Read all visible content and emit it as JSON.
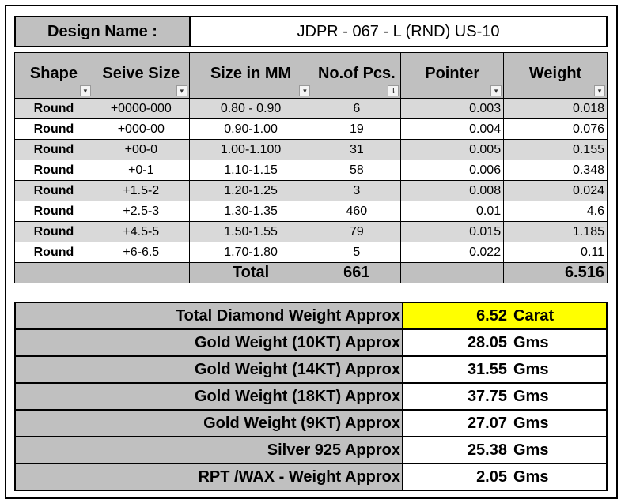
{
  "design": {
    "label": "Design Name :",
    "value": "JDPR - 067 - L (RND) US-10"
  },
  "table": {
    "headers": [
      "Shape",
      "Seive Size",
      "Size in MM",
      "No.of Pcs.",
      "Pointer",
      "Weight"
    ],
    "filter_icons": [
      "dropdown-arrow",
      "dropdown-arrow",
      "dropdown-arrow",
      "sort-filter-icon",
      "dropdown-arrow",
      "dropdown-arrow"
    ],
    "rows": [
      {
        "shape": "Round",
        "seive": "+0000-000",
        "mm": "0.80 - 0.90",
        "pcs": "6",
        "pointer": "0.003",
        "weight": "0.018"
      },
      {
        "shape": "Round",
        "seive": "+000-00",
        "mm": "0.90-1.00",
        "pcs": "19",
        "pointer": "0.004",
        "weight": "0.076"
      },
      {
        "shape": "Round",
        "seive": "+00-0",
        "mm": "1.00-1.100",
        "pcs": "31",
        "pointer": "0.005",
        "weight": "0.155"
      },
      {
        "shape": "Round",
        "seive": "+0-1",
        "mm": "1.10-1.15",
        "pcs": "58",
        "pointer": "0.006",
        "weight": "0.348"
      },
      {
        "shape": "Round",
        "seive": "+1.5-2",
        "mm": "1.20-1.25",
        "pcs": "3",
        "pointer": "0.008",
        "weight": "0.024"
      },
      {
        "shape": "Round",
        "seive": "+2.5-3",
        "mm": "1.30-1.35",
        "pcs": "460",
        "pointer": "0.01",
        "weight": "4.6"
      },
      {
        "shape": "Round",
        "seive": "+4.5-5",
        "mm": "1.50-1.55",
        "pcs": "79",
        "pointer": "0.015",
        "weight": "1.185"
      },
      {
        "shape": "Round",
        "seive": "+6-6.5",
        "mm": "1.70-1.80",
        "pcs": "5",
        "pointer": "0.022",
        "weight": "0.11"
      }
    ],
    "total": {
      "label": "Total",
      "pcs": "661",
      "weight": "6.516"
    }
  },
  "summary": [
    {
      "label": "Total Diamond Weight Approx",
      "value": "6.52",
      "unit": "Carat"
    },
    {
      "label": "Gold Weight (10KT) Approx",
      "value": "28.05",
      "unit": "Gms"
    },
    {
      "label": "Gold Weight (14KT) Approx",
      "value": "31.55",
      "unit": "Gms"
    },
    {
      "label": "Gold Weight (18KT) Approx",
      "value": "37.75",
      "unit": "Gms"
    },
    {
      "label": "Gold Weight (9KT) Approx",
      "value": "27.07",
      "unit": "Gms"
    },
    {
      "label": "Silver 925 Approx",
      "value": "25.38",
      "unit": "Gms"
    },
    {
      "label": "RPT /WAX - Weight Approx",
      "value": "2.05",
      "unit": "Gms"
    }
  ],
  "colors": {
    "header_gray": "#c0c0c0",
    "row_shade": "#d9d9d9",
    "highlight": "#ffff00"
  }
}
